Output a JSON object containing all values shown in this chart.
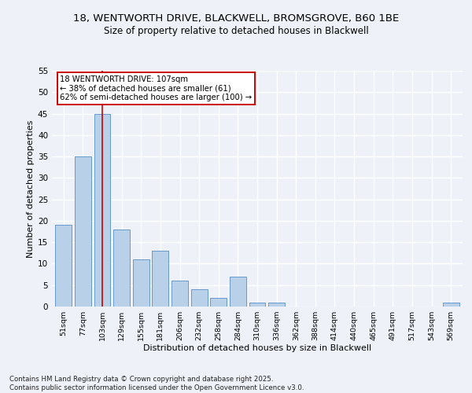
{
  "title_line1": "18, WENTWORTH DRIVE, BLACKWELL, BROMSGROVE, B60 1BE",
  "title_line2": "Size of property relative to detached houses in Blackwell",
  "xlabel": "Distribution of detached houses by size in Blackwell",
  "ylabel": "Number of detached properties",
  "bar_labels": [
    "51sqm",
    "77sqm",
    "103sqm",
    "129sqm",
    "155sqm",
    "181sqm",
    "206sqm",
    "232sqm",
    "258sqm",
    "284sqm",
    "310sqm",
    "336sqm",
    "362sqm",
    "388sqm",
    "414sqm",
    "440sqm",
    "465sqm",
    "491sqm",
    "517sqm",
    "543sqm",
    "569sqm"
  ],
  "bar_values": [
    19,
    35,
    45,
    18,
    11,
    13,
    6,
    4,
    2,
    7,
    1,
    1,
    0,
    0,
    0,
    0,
    0,
    0,
    0,
    0,
    1
  ],
  "bar_color": "#b8d0e8",
  "bar_edge_color": "#6699cc",
  "vline_x": 2,
  "vline_color": "#cc0000",
  "annotation_text": "18 WENTWORTH DRIVE: 107sqm\n← 38% of detached houses are smaller (61)\n62% of semi-detached houses are larger (100) →",
  "annotation_box_color": "#ffffff",
  "annotation_border_color": "#cc0000",
  "ylim": [
    0,
    55
  ],
  "yticks": [
    0,
    5,
    10,
    15,
    20,
    25,
    30,
    35,
    40,
    45,
    50,
    55
  ],
  "background_color": "#eef2f8",
  "grid_color": "#ffffff",
  "footer_line1": "Contains HM Land Registry data © Crown copyright and database right 2025.",
  "footer_line2": "Contains public sector information licensed under the Open Government Licence v3.0."
}
